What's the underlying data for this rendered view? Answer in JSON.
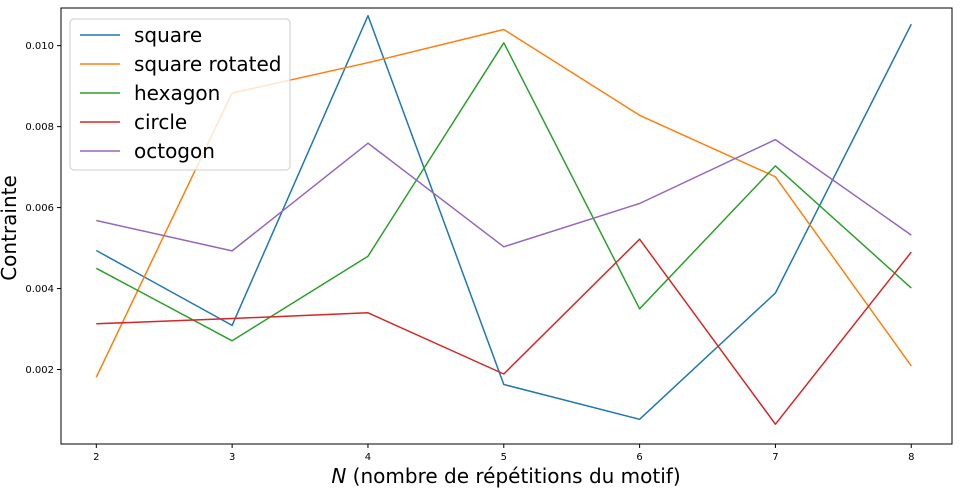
{
  "chart_data": {
    "type": "line",
    "title": "",
    "xlabel_italic": "N",
    "xlabel_rest": " (nombre de répétitions du motif)",
    "ylabel": "Contrainte",
    "x": [
      2,
      3,
      4,
      5,
      6,
      7,
      8
    ],
    "xlim": [
      1.74,
      8.3
    ],
    "ylim": [
      0.00016,
      0.01093
    ],
    "xticks": [
      "2",
      "3",
      "4",
      "5",
      "6",
      "7",
      "8"
    ],
    "yticks": [
      "0.002",
      "0.004",
      "0.006",
      "0.008",
      "0.010"
    ],
    "grid": false,
    "legend_position": "top-left",
    "series": [
      {
        "name": "square",
        "color": "#1f77b4",
        "values": [
          0.00494,
          0.00309,
          0.01074,
          0.00163,
          0.00077,
          0.00389,
          0.01053
        ]
      },
      {
        "name": "square rotated",
        "color": "#ff7f0e",
        "values": [
          0.00181,
          0.00883,
          0.00958,
          0.0104,
          0.00828,
          0.00676,
          0.00209
        ]
      },
      {
        "name": "hexagon",
        "color": "#2ca02c",
        "values": [
          0.0045,
          0.00271,
          0.0048,
          0.01007,
          0.0035,
          0.00703,
          0.00401
        ]
      },
      {
        "name": "circle",
        "color": "#d62728",
        "values": [
          0.00313,
          0.00326,
          0.0034,
          0.00189,
          0.00522,
          0.00065,
          0.0049
        ]
      },
      {
        "name": "octogon",
        "color": "#9467bd",
        "values": [
          0.00568,
          0.00493,
          0.00759,
          0.00503,
          0.0061,
          0.00768,
          0.00532
        ]
      }
    ]
  }
}
